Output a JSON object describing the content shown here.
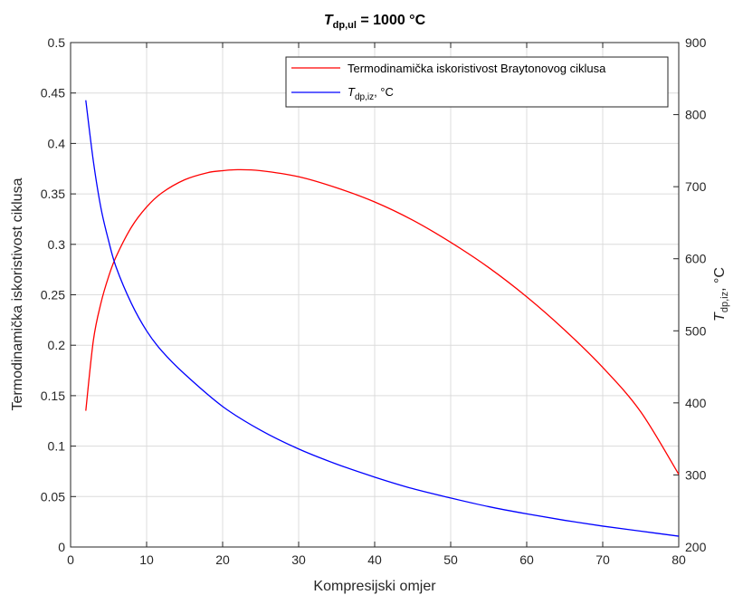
{
  "chart_data": {
    "type": "line",
    "title": {
      "main": "T",
      "sub": "dp,ul",
      "rest": " = 1000 °C"
    },
    "xlabel": "Kompresijski omjer",
    "ylabel_left": "Termodinamička iskoristivost ciklusa",
    "ylabel_right": {
      "main": "T",
      "sub": "dp,iz",
      "rest": ", °C"
    },
    "xlim": [
      0,
      80
    ],
    "ylim_left": [
      0,
      0.5
    ],
    "ylim_right": [
      200,
      900
    ],
    "x_ticks": [
      "0",
      "10",
      "20",
      "30",
      "40",
      "50",
      "60",
      "70",
      "80"
    ],
    "y_left_ticks": [
      "0",
      "0.05",
      "0.1",
      "0.15",
      "0.2",
      "0.25",
      "0.3",
      "0.35",
      "0.4",
      "0.45",
      "0.5"
    ],
    "y_right_ticks": [
      "200",
      "300",
      "400",
      "500",
      "600",
      "700",
      "800",
      "900"
    ],
    "grid": true,
    "legend_position": "top-right",
    "colors": {
      "efficiency": "#ff0000",
      "temperature": "#0000ff"
    },
    "series": [
      {
        "legend": "Termodinamička iskoristivost Braytonovog ciklusa",
        "axis": "left",
        "x": [
          2,
          3,
          4,
          5,
          6,
          8,
          10,
          12,
          15,
          18,
          20,
          22,
          25,
          30,
          35,
          40,
          45,
          50,
          55,
          60,
          65,
          70,
          75,
          80
        ],
        "values": [
          0.135,
          0.205,
          0.242,
          0.268,
          0.288,
          0.317,
          0.337,
          0.351,
          0.364,
          0.371,
          0.373,
          0.374,
          0.373,
          0.367,
          0.356,
          0.342,
          0.324,
          0.302,
          0.277,
          0.248,
          0.215,
          0.178,
          0.134,
          0.072
        ]
      },
      {
        "legend": {
          "main": "T",
          "sub": "dp,iz",
          "rest": ", °C"
        },
        "axis": "right",
        "x": [
          2,
          3,
          4,
          5,
          6,
          8,
          10,
          12,
          15,
          20,
          25,
          30,
          35,
          40,
          45,
          50,
          55,
          60,
          65,
          70,
          75,
          80
        ],
        "values": [
          820,
          735,
          670,
          625,
          588,
          538,
          500,
          472,
          440,
          395,
          362,
          336,
          315,
          297,
          281,
          268,
          256,
          246,
          237,
          229,
          222,
          215
        ]
      }
    ]
  }
}
